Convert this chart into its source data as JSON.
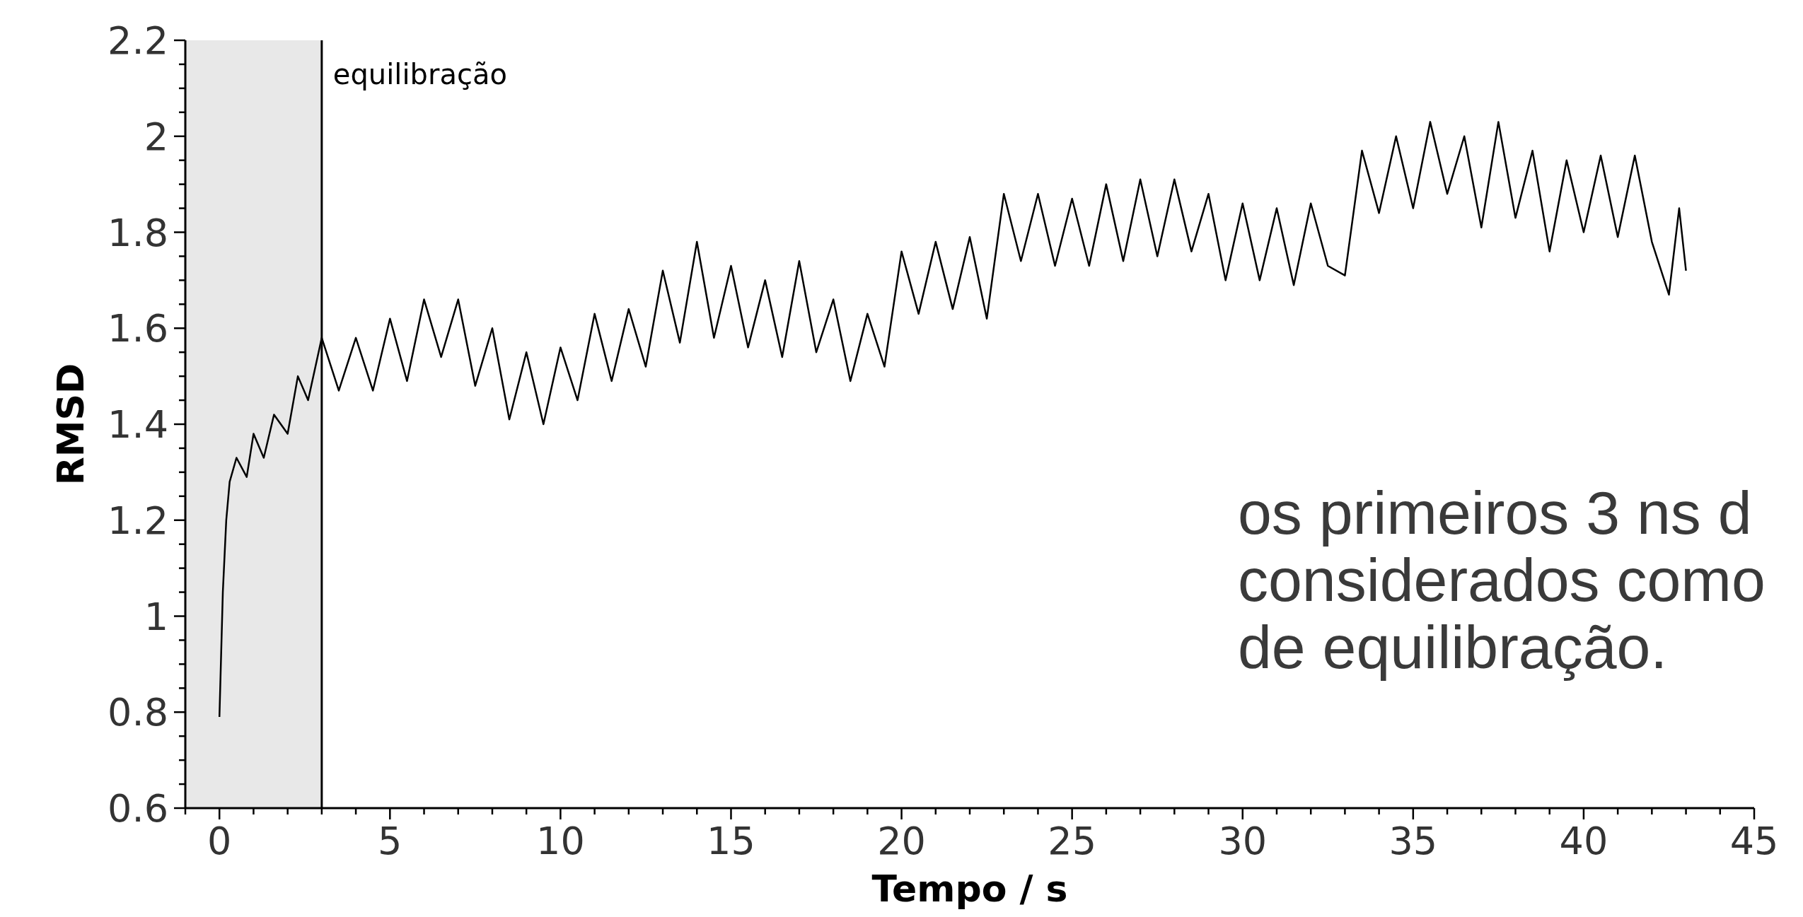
{
  "chart_data": {
    "type": "line",
    "xlabel": "Tempo / s",
    "ylabel": "RMSD",
    "xlim": [
      -1,
      45
    ],
    "ylim": [
      0.6,
      2.2
    ],
    "xticks": [
      {
        "value": -1,
        "label": null
      },
      0,
      {
        "value": 1,
        "label": null
      },
      {
        "value": 2,
        "label": null
      },
      {
        "value": 3,
        "label": null
      },
      {
        "value": 4,
        "label": null
      },
      5,
      {
        "value": 6,
        "label": null
      },
      {
        "value": 7,
        "label": null
      },
      {
        "value": 8,
        "label": null
      },
      {
        "value": 9,
        "label": null
      },
      10,
      {
        "value": 11,
        "label": null
      },
      {
        "value": 12,
        "label": null
      },
      {
        "value": 13,
        "label": null
      },
      {
        "value": 14,
        "label": null
      },
      15,
      {
        "value": 16,
        "label": null
      },
      {
        "value": 17,
        "label": null
      },
      {
        "value": 18,
        "label": null
      },
      {
        "value": 19,
        "label": null
      },
      20,
      {
        "value": 21,
        "label": null
      },
      {
        "value": 22,
        "label": null
      },
      {
        "value": 23,
        "label": null
      },
      {
        "value": 24,
        "label": null
      },
      25,
      {
        "value": 26,
        "label": null
      },
      {
        "value": 27,
        "label": null
      },
      {
        "value": 28,
        "label": null
      },
      {
        "value": 29,
        "label": null
      },
      30,
      {
        "value": 31,
        "label": null
      },
      {
        "value": 32,
        "label": null
      },
      {
        "value": 33,
        "label": null
      },
      {
        "value": 34,
        "label": null
      },
      35,
      {
        "value": 36,
        "label": null
      },
      {
        "value": 37,
        "label": null
      },
      {
        "value": 38,
        "label": null
      },
      {
        "value": 39,
        "label": null
      },
      40,
      {
        "value": 41,
        "label": null
      },
      {
        "value": 42,
        "label": null
      },
      {
        "value": 43,
        "label": null
      },
      {
        "value": 44,
        "label": null
      },
      45
    ],
    "yticks": [
      0.6,
      {
        "value": 0.65,
        "label": null
      },
      {
        "value": 0.7,
        "label": null
      },
      {
        "value": 0.75,
        "label": null
      },
      0.8,
      {
        "value": 0.85,
        "label": null
      },
      {
        "value": 0.9,
        "label": null
      },
      {
        "value": 0.95,
        "label": null
      },
      1,
      {
        "value": 1.05,
        "label": null
      },
      {
        "value": 1.1,
        "label": null
      },
      {
        "value": 1.15,
        "label": null
      },
      1.2,
      {
        "value": 1.25,
        "label": null
      },
      {
        "value": 1.3,
        "label": null
      },
      {
        "value": 1.35,
        "label": null
      },
      1.4,
      {
        "value": 1.45,
        "label": null
      },
      {
        "value": 1.5,
        "label": null
      },
      {
        "value": 1.55,
        "label": null
      },
      1.6,
      {
        "value": 1.65,
        "label": null
      },
      {
        "value": 1.7,
        "label": null
      },
      {
        "value": 1.75,
        "label": null
      },
      1.8,
      {
        "value": 1.85,
        "label": null
      },
      {
        "value": 1.9,
        "label": null
      },
      {
        "value": 1.95,
        "label": null
      },
      2,
      {
        "value": 2.05,
        "label": null
      },
      {
        "value": 2.1,
        "label": null
      },
      {
        "value": 2.15,
        "label": null
      },
      2.2
    ],
    "grid": false,
    "marker": "none",
    "line_style": "solid",
    "bands": [
      {
        "axis": "x",
        "from": -1,
        "to": 3,
        "color": "#e8e8e8"
      }
    ],
    "ref_lines": [
      {
        "axis": "x",
        "value": 3,
        "label": "equilibração",
        "color": "#000000"
      }
    ],
    "annotations": [
      "os primeiros 3 ns d",
      "considerados como",
      "de equilibração."
    ],
    "series": [
      {
        "color": "#000000",
        "x": [
          0,
          0.1,
          0.2,
          0.3,
          0.5,
          0.8,
          1,
          1.3,
          1.6,
          2,
          2.3,
          2.6,
          3,
          3.5,
          4,
          4.5,
          5,
          5.5,
          6,
          6.5,
          7,
          7.5,
          8,
          8.5,
          9,
          9.5,
          10,
          10.5,
          11,
          11.5,
          12,
          12.5,
          13,
          13.5,
          14,
          14.5,
          15,
          15.5,
          16,
          16.5,
          17,
          17.5,
          18,
          18.5,
          19,
          19.5,
          20,
          20.5,
          21,
          21.5,
          22,
          22.5,
          23,
          23.5,
          24,
          24.5,
          25,
          25.5,
          26,
          26.5,
          27,
          27.5,
          28,
          28.5,
          29,
          29.5,
          30,
          30.5,
          31,
          31.5,
          32,
          32.5,
          33,
          33.5,
          34,
          34.5,
          35,
          35.5,
          36,
          36.5,
          37,
          37.5,
          38,
          38.5,
          39,
          39.5,
          40,
          40.5,
          41,
          41.5,
          42,
          42.5,
          42.8,
          43
        ],
        "values": [
          0.79,
          1.05,
          1.2,
          1.28,
          1.33,
          1.29,
          1.38,
          1.33,
          1.42,
          1.38,
          1.5,
          1.45,
          1.58,
          1.47,
          1.58,
          1.47,
          1.62,
          1.49,
          1.66,
          1.54,
          1.66,
          1.48,
          1.6,
          1.41,
          1.55,
          1.4,
          1.56,
          1.45,
          1.63,
          1.49,
          1.64,
          1.52,
          1.72,
          1.57,
          1.78,
          1.58,
          1.73,
          1.56,
          1.7,
          1.54,
          1.74,
          1.55,
          1.66,
          1.49,
          1.63,
          1.52,
          1.76,
          1.63,
          1.78,
          1.64,
          1.79,
          1.62,
          1.88,
          1.74,
          1.88,
          1.73,
          1.87,
          1.73,
          1.9,
          1.74,
          1.91,
          1.75,
          1.91,
          1.76,
          1.88,
          1.7,
          1.86,
          1.7,
          1.85,
          1.69,
          1.86,
          1.73,
          1.71,
          1.97,
          1.84,
          2.0,
          1.85,
          2.03,
          1.88,
          2.0,
          1.81,
          2.03,
          1.83,
          1.97,
          1.76,
          1.95,
          1.8,
          1.96,
          1.79,
          1.96,
          1.78,
          1.67,
          1.85,
          1.72
        ]
      }
    ]
  }
}
